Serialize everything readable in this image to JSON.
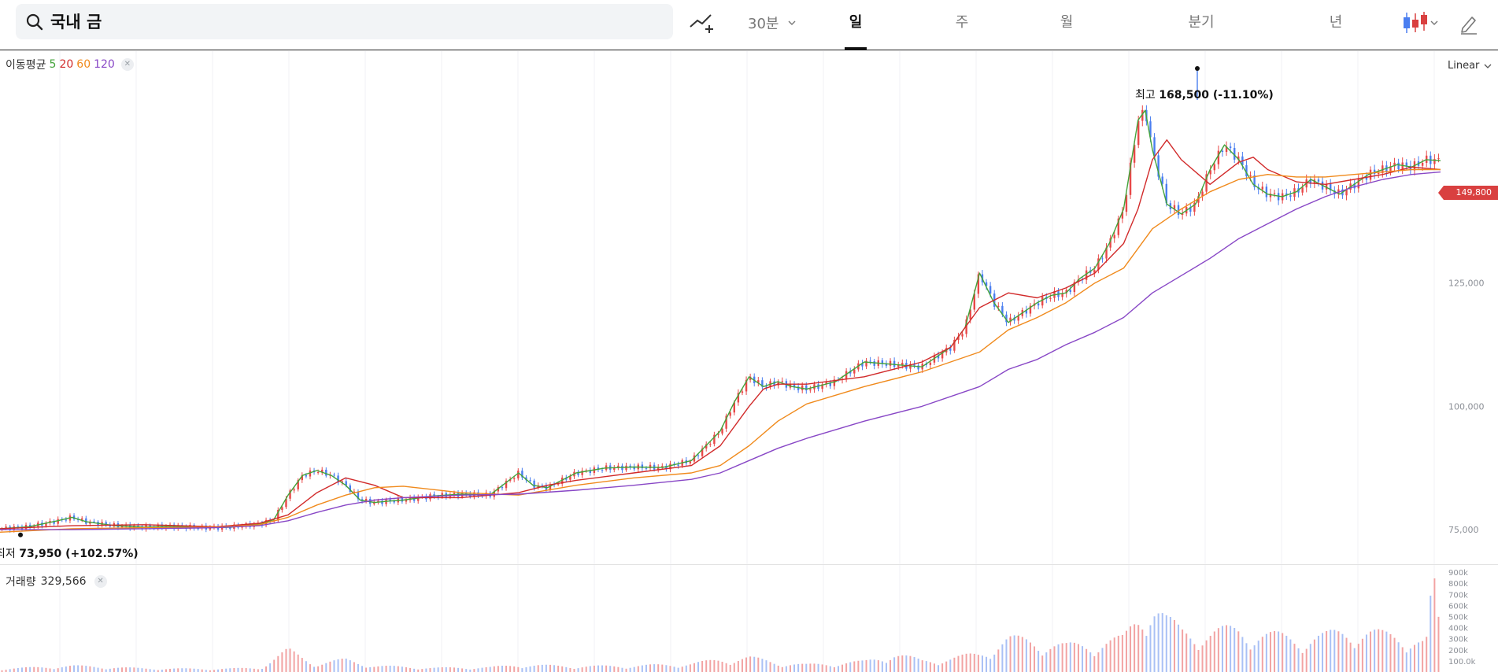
{
  "search": {
    "value": "국내 금",
    "icon": "search-icon"
  },
  "toolbar": {
    "interval": "30분",
    "tabs": [
      {
        "label": "일",
        "active": true
      },
      {
        "label": "주",
        "active": false
      },
      {
        "label": "월",
        "active": false
      },
      {
        "label": "분기",
        "active": false
      },
      {
        "label": "년",
        "active": false
      }
    ],
    "indicator_icon": "indicator-add-icon",
    "candle_icon": "candlestick-icon",
    "drawing_icon": "pencil-icon"
  },
  "chart": {
    "ma_legend": {
      "label": "이동평균",
      "periods": [
        "5",
        "20",
        "60",
        "120"
      ]
    },
    "scale": "Linear",
    "current_price_label": "149,800",
    "high_annotation": {
      "prefix": "최고",
      "value": "168,500 (-11.10%)"
    },
    "low_annotation": {
      "prefix": "최저",
      "value": "73,950 (+102.57%)"
    },
    "volume_legend": {
      "label": "거래량",
      "value": "329,566"
    }
  },
  "colors": {
    "up": "#e84848",
    "down": "#4a7ef0",
    "ma5": "#43a33a",
    "ma20": "#d12a2a",
    "ma60": "#f08a1c",
    "ma120": "#8847c6",
    "badge": "#d94040"
  },
  "chart_data": [
    {
      "type": "line",
      "title": "",
      "xlabel": "",
      "ylabel": "",
      "ylim": [
        68000,
        172000
      ],
      "y_ticks": [
        75000,
        100000,
        125000
      ],
      "y_tick_labels": [
        "75,000",
        "100,000",
        "125,000"
      ],
      "x_range": [
        0,
        100
      ],
      "grid": "vertical",
      "legend": "top-left",
      "series": [
        {
          "name": "5",
          "x": [
            0,
            2,
            4,
            5,
            6,
            8,
            10,
            12,
            14,
            16,
            18,
            19,
            20,
            21,
            22,
            23,
            24,
            25,
            26,
            27,
            28,
            30,
            32,
            34,
            36,
            37,
            38,
            39,
            40,
            42,
            44,
            46,
            48,
            50,
            51,
            52,
            53,
            54,
            55,
            56,
            58,
            60,
            62,
            64,
            66,
            67,
            68,
            69,
            70,
            71,
            72,
            73,
            74,
            75,
            76,
            77,
            78,
            79,
            79.5,
            80,
            81,
            82,
            83,
            84,
            85,
            86,
            87,
            88,
            89,
            90,
            91,
            92,
            93,
            94,
            95,
            96,
            97,
            98,
            99,
            100
          ],
          "values": [
            75200,
            75600,
            76800,
            77500,
            76600,
            75800,
            75500,
            75700,
            75400,
            75500,
            76200,
            77000,
            82000,
            86000,
            87000,
            86000,
            84000,
            81000,
            80500,
            80800,
            81000,
            81800,
            82200,
            82000,
            86500,
            84000,
            83500,
            85000,
            86500,
            87500,
            87700,
            87600,
            89000,
            95000,
            101000,
            106000,
            104000,
            105000,
            104000,
            103500,
            105000,
            109000,
            108500,
            108000,
            112000,
            116000,
            127000,
            121000,
            117000,
            119000,
            121000,
            122500,
            123000,
            126000,
            128000,
            133000,
            140000,
            158000,
            160000,
            152000,
            141000,
            139000,
            141000,
            148000,
            153000,
            150000,
            145000,
            143000,
            142500,
            143500,
            146000,
            144500,
            143000,
            145000,
            147000,
            148000,
            149000,
            148500,
            150000,
            149800
          ]
        },
        {
          "name": "20",
          "x": [
            0,
            5,
            10,
            15,
            18,
            20,
            22,
            24,
            26,
            28,
            32,
            36,
            38,
            40,
            44,
            48,
            50,
            52,
            53,
            54,
            56,
            60,
            64,
            66,
            68,
            70,
            72,
            74,
            76,
            78,
            79,
            80,
            81,
            82,
            84,
            86,
            87,
            88,
            90,
            92,
            94,
            96,
            98,
            100
          ],
          "values": [
            75200,
            75800,
            76000,
            75600,
            76300,
            78000,
            82500,
            85500,
            84000,
            81500,
            81500,
            82500,
            84000,
            85000,
            86500,
            88000,
            92000,
            100000,
            103500,
            104500,
            104500,
            106000,
            109000,
            112000,
            120000,
            123000,
            122000,
            124000,
            127000,
            133000,
            140000,
            150000,
            154000,
            150000,
            145000,
            149500,
            150500,
            148000,
            145500,
            145000,
            146000,
            147000,
            148500,
            148000
          ]
        },
        {
          "name": "60",
          "x": [
            0,
            5,
            10,
            15,
            18,
            20,
            22,
            24,
            26,
            28,
            32,
            36,
            40,
            44,
            48,
            50,
            52,
            54,
            56,
            60,
            64,
            68,
            70,
            72,
            74,
            76,
            78,
            80,
            82,
            84,
            86,
            88,
            90,
            92,
            94,
            96,
            98,
            100
          ],
          "values": [
            74500,
            75200,
            75400,
            75500,
            76000,
            77500,
            80000,
            82000,
            83500,
            83800,
            82500,
            82000,
            84000,
            85500,
            86500,
            88000,
            92000,
            97000,
            100500,
            104000,
            107000,
            111000,
            115500,
            118000,
            121000,
            125000,
            128000,
            136000,
            140000,
            143500,
            146000,
            147000,
            146500,
            146500,
            147000,
            147500,
            148000,
            148000
          ]
        },
        {
          "name": "120",
          "x": [
            0,
            5,
            10,
            15,
            18,
            20,
            22,
            24,
            26,
            28,
            32,
            36,
            40,
            44,
            48,
            50,
            52,
            54,
            56,
            60,
            64,
            68,
            70,
            72,
            74,
            76,
            78,
            80,
            82,
            84,
            86,
            88,
            90,
            92,
            94,
            96,
            98,
            100
          ],
          "values": [
            75000,
            75000,
            75200,
            75400,
            75800,
            76800,
            78500,
            80000,
            81000,
            81500,
            82000,
            82200,
            83000,
            84000,
            85200,
            86500,
            89000,
            91500,
            93500,
            97000,
            100000,
            104000,
            107500,
            109500,
            112500,
            115000,
            118000,
            123000,
            126500,
            130000,
            134000,
            137000,
            140000,
            142500,
            144500,
            146000,
            147000,
            147500
          ]
        }
      ]
    },
    {
      "type": "bar",
      "title": "",
      "ylim": [
        0,
        950000
      ],
      "y_ticks": [
        100000,
        200000,
        300000,
        400000,
        500000,
        600000,
        700000,
        800000,
        900000
      ],
      "y_tick_labels": [
        "100.0k",
        "200k",
        "300k",
        "400k",
        "500k",
        "600k",
        "700k",
        "800k",
        "900k"
      ],
      "x_range": [
        0,
        100
      ],
      "series": [
        {
          "name": "거래량",
          "x": [
            0,
            5,
            10,
            15,
            18,
            20,
            22,
            24,
            26,
            30,
            34,
            36,
            40,
            44,
            48,
            50,
            52,
            54,
            56,
            60,
            62,
            64,
            66,
            68,
            70,
            72,
            74,
            76,
            78,
            79,
            80,
            81,
            82,
            84,
            86,
            88,
            90,
            92,
            94,
            96,
            98,
            99,
            99.5,
            100
          ],
          "values": [
            30000,
            60000,
            35000,
            30000,
            40000,
            210000,
            80000,
            120000,
            60000,
            40000,
            45000,
            70000,
            55000,
            60000,
            80000,
            120000,
            140000,
            90000,
            70000,
            100000,
            180000,
            110000,
            130000,
            180000,
            320000,
            300000,
            250000,
            280000,
            320000,
            550000,
            700000,
            500000,
            400000,
            380000,
            420000,
            360000,
            330000,
            350000,
            420000,
            360000,
            340000,
            280000,
            900000,
            329566
          ]
        }
      ]
    }
  ]
}
